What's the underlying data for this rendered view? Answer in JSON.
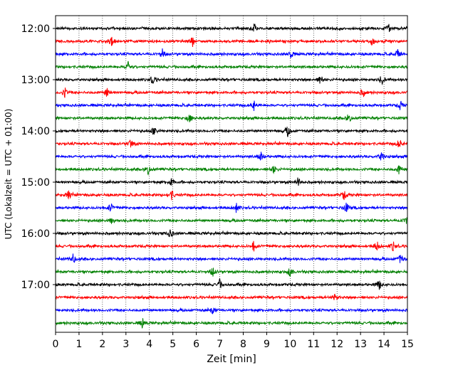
{
  "chart_data": {
    "type": "line",
    "title": "",
    "xlabel": "Zeit  [min]",
    "ylabel": "UTC (Lokalzeit = UTC + 01:00)",
    "xlim": [
      0,
      15
    ],
    "x_ticks": [
      "0",
      "1",
      "2",
      "3",
      "4",
      "5",
      "6",
      "7",
      "8",
      "9",
      "10",
      "11",
      "12",
      "13",
      "14",
      "15"
    ],
    "y_ticks": [
      "12:00",
      "13:00",
      "14:00",
      "15:00",
      "16:00",
      "17:00"
    ],
    "grid": "vertical-dotted",
    "trace_interval_min": 15,
    "trace_colors": [
      "#000000",
      "#ff0000",
      "#0000ff",
      "#008000"
    ],
    "traces": [
      {
        "start": "12:00",
        "color": "#000000",
        "events": [
          8.45,
          14.2
        ]
      },
      {
        "start": "12:15",
        "color": "#ff0000",
        "events": [
          2.4,
          5.85,
          13.5
        ]
      },
      {
        "start": "12:30",
        "color": "#0000ff",
        "events": [
          4.55,
          10.05,
          14.6
        ]
      },
      {
        "start": "12:45",
        "color": "#008000",
        "events": [
          3.1
        ]
      },
      {
        "start": "13:00",
        "color": "#000000",
        "events": [
          4.15,
          11.3,
          13.9
        ]
      },
      {
        "start": "13:15",
        "color": "#ff0000",
        "events": [
          0.4,
          2.2,
          13.1
        ]
      },
      {
        "start": "13:30",
        "color": "#0000ff",
        "events": [
          8.45,
          14.7
        ]
      },
      {
        "start": "13:45",
        "color": "#008000",
        "events": [
          5.7,
          12.5
        ]
      },
      {
        "start": "14:00",
        "color": "#000000",
        "events": [
          4.2,
          9.9
        ]
      },
      {
        "start": "14:15",
        "color": "#ff0000",
        "events": [
          3.2,
          14.65
        ]
      },
      {
        "start": "14:30",
        "color": "#0000ff",
        "events": [
          8.75,
          13.9
        ]
      },
      {
        "start": "14:45",
        "color": "#008000",
        "events": [
          3.95,
          9.3,
          14.65
        ]
      },
      {
        "start": "15:00",
        "color": "#000000",
        "events": [
          4.95,
          10.35
        ]
      },
      {
        "start": "15:15",
        "color": "#ff0000",
        "events": [
          0.55,
          4.95,
          12.3
        ]
      },
      {
        "start": "15:30",
        "color": "#0000ff",
        "events": [
          2.35,
          7.7,
          12.4
        ]
      },
      {
        "start": "15:45",
        "color": "#008000",
        "events": [
          2.4,
          14.95
        ]
      },
      {
        "start": "16:00",
        "color": "#000000",
        "events": [
          4.9
        ]
      },
      {
        "start": "16:15",
        "color": "#ff0000",
        "events": [
          8.45,
          13.7,
          14.4
        ]
      },
      {
        "start": "16:30",
        "color": "#0000ff",
        "events": [
          0.75,
          14.7
        ]
      },
      {
        "start": "16:45",
        "color": "#008000",
        "events": [
          6.7,
          10.0
        ]
      },
      {
        "start": "17:00",
        "color": "#000000",
        "events": [
          7.0,
          13.8
        ]
      },
      {
        "start": "17:15",
        "color": "#ff0000",
        "events": [
          11.9
        ]
      },
      {
        "start": "17:30",
        "color": "#0000ff",
        "events": [
          6.7
        ]
      },
      {
        "start": "17:45",
        "color": "#008000",
        "events": [
          3.7
        ]
      }
    ]
  }
}
